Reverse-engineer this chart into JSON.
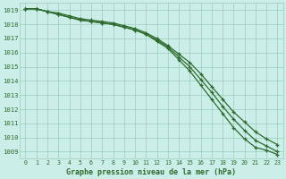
{
  "title": "Graphe pression niveau de la mer (hPa)",
  "bg_color": "#cceee8",
  "grid_color": "#99ccbb",
  "line_color": "#2d6a2d",
  "xlim": [
    -0.5,
    23.5
  ],
  "ylim": [
    1008.5,
    1019.5
  ],
  "yticks": [
    1009,
    1010,
    1011,
    1012,
    1013,
    1014,
    1015,
    1016,
    1017,
    1018,
    1019
  ],
  "xticks": [
    0,
    1,
    2,
    3,
    4,
    5,
    6,
    7,
    8,
    9,
    10,
    11,
    12,
    13,
    14,
    15,
    16,
    17,
    18,
    19,
    20,
    21,
    22,
    23
  ],
  "x": [
    0,
    1,
    2,
    3,
    4,
    5,
    6,
    7,
    8,
    9,
    10,
    11,
    12,
    13,
    14,
    15,
    16,
    17,
    18,
    19,
    20,
    21,
    22,
    23
  ],
  "line1": [
    1019.1,
    1019.1,
    1018.9,
    1018.7,
    1018.5,
    1018.3,
    1018.2,
    1018.1,
    1018.0,
    1017.8,
    1017.6,
    1017.3,
    1016.9,
    1016.4,
    1015.7,
    1015.0,
    1014.1,
    1013.2,
    1012.2,
    1011.3,
    1010.5,
    1009.8,
    1009.4,
    1009.0
  ],
  "line2": [
    1019.1,
    1019.1,
    1018.9,
    1018.7,
    1018.5,
    1018.3,
    1018.2,
    1018.1,
    1018.0,
    1017.8,
    1017.6,
    1017.3,
    1016.8,
    1016.3,
    1015.5,
    1014.7,
    1013.7,
    1012.7,
    1011.7,
    1010.7,
    1009.9,
    1009.3,
    1009.1,
    1008.8
  ],
  "line3": [
    1019.1,
    1019.1,
    1018.9,
    1018.8,
    1018.6,
    1018.4,
    1018.3,
    1018.2,
    1018.1,
    1017.9,
    1017.7,
    1017.4,
    1017.0,
    1016.5,
    1015.9,
    1015.3,
    1014.5,
    1013.6,
    1012.7,
    1011.8,
    1011.1,
    1010.4,
    1009.9,
    1009.5
  ]
}
